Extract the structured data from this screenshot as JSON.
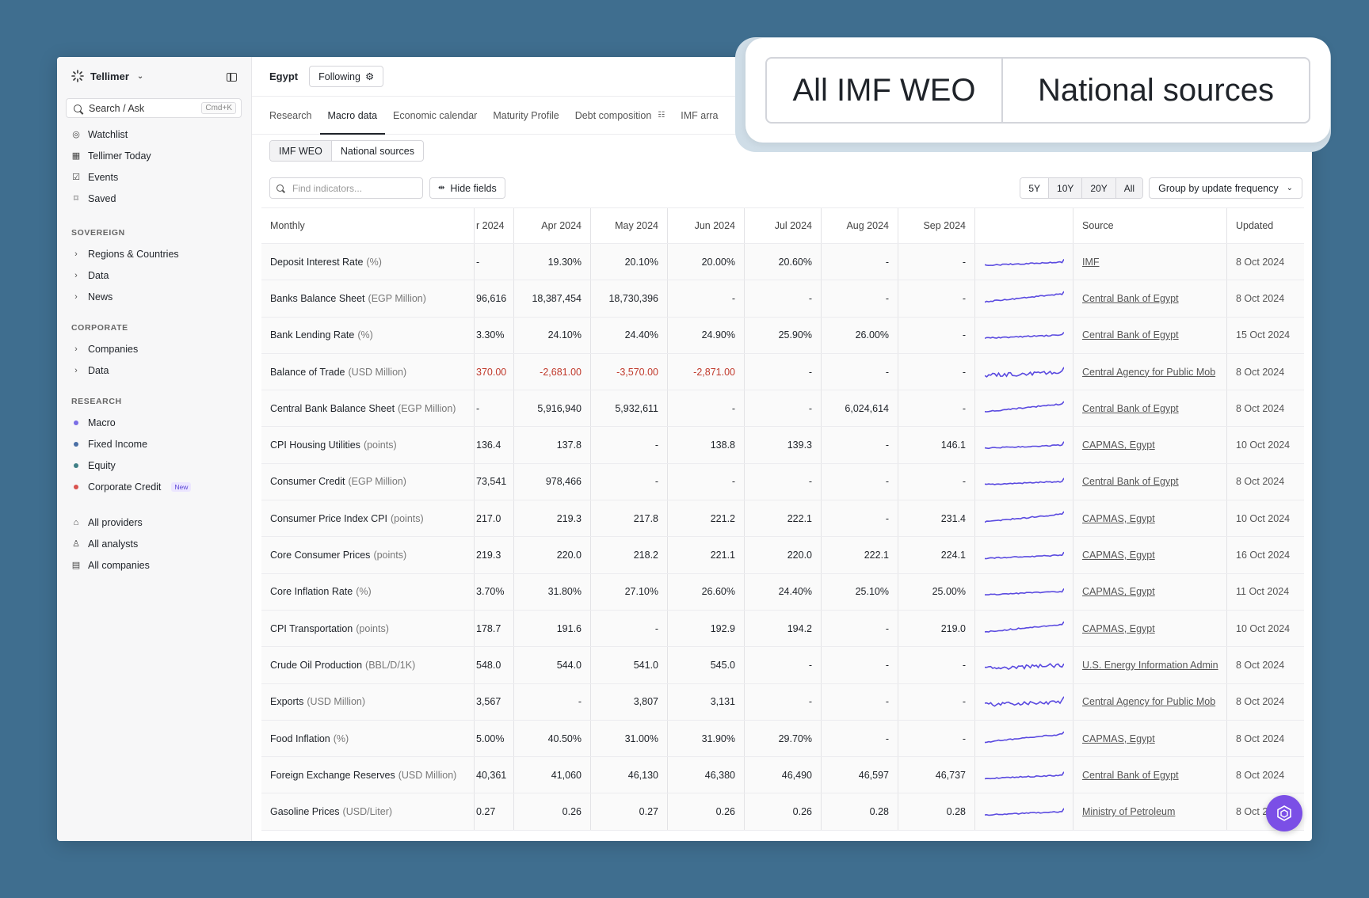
{
  "app": {
    "name": "Tellimer"
  },
  "sidebar": {
    "search_label": "Search / Ask",
    "search_shortcut": "Cmd+K",
    "top_items": [
      {
        "label": "Watchlist",
        "icon": "eye-icon"
      },
      {
        "label": "Tellimer Today",
        "icon": "calendar-icon"
      },
      {
        "label": "Events",
        "icon": "calendar-check-icon"
      },
      {
        "label": "Saved",
        "icon": "bookmark-icon"
      }
    ],
    "sovereign_title": "SOVEREIGN",
    "sovereign_items": [
      "Regions & Countries",
      "Data",
      "News"
    ],
    "corporate_title": "CORPORATE",
    "corporate_items": [
      "Companies",
      "Data"
    ],
    "research_title": "RESEARCH",
    "research_items": [
      {
        "label": "Macro",
        "color": "#7b6ee6"
      },
      {
        "label": "Fixed Income",
        "color": "#4a6fa5"
      },
      {
        "label": "Equity",
        "color": "#3f7f86"
      },
      {
        "label": "Corporate Credit",
        "color": "#d9534f",
        "badge": "New"
      }
    ],
    "bottom_items": [
      {
        "label": "All providers",
        "icon": "building-icon"
      },
      {
        "label": "All analysts",
        "icon": "user-icon"
      },
      {
        "label": "All companies",
        "icon": "document-icon"
      }
    ]
  },
  "header": {
    "country": "Egypt",
    "follow_label": "Following"
  },
  "tabs": [
    "Research",
    "Macro data",
    "Economic calendar",
    "Maturity Profile",
    "Debt composition",
    "IMF arra"
  ],
  "source_toggle": [
    "IMF WEO",
    "National sources"
  ],
  "controls": {
    "find_placeholder": "Find indicators...",
    "hide_fields": "Hide fields",
    "ranges": [
      "5Y",
      "10Y",
      "20Y",
      "All"
    ],
    "group_by": "Group by update frequency"
  },
  "table": {
    "group_label": "Monthly",
    "columns": [
      "r 2024",
      "Apr 2024",
      "May 2024",
      "Jun 2024",
      "Jul 2024",
      "Aug 2024",
      "Sep 2024"
    ],
    "source_header": "Source",
    "updated_header": "Updated",
    "rows": [
      {
        "name": "Deposit Interest Rate",
        "unit": "(%)",
        "values": [
          "-",
          "19.30%",
          "20.10%",
          "20.00%",
          "20.60%",
          "-",
          "-"
        ],
        "source": "IMF",
        "updated": "8 Oct 2024"
      },
      {
        "name": "Banks Balance Sheet",
        "unit": "(EGP Million)",
        "values": [
          "96,616",
          "18,387,454",
          "18,730,396",
          "-",
          "-",
          "-",
          "-"
        ],
        "source": "Central Bank of Egypt",
        "updated": "8 Oct 2024"
      },
      {
        "name": "Bank Lending Rate",
        "unit": "(%)",
        "values": [
          "3.30%",
          "24.10%",
          "24.40%",
          "24.90%",
          "25.90%",
          "26.00%",
          "-"
        ],
        "source": "Central Bank of Egypt",
        "updated": "15 Oct 2024"
      },
      {
        "name": "Balance of Trade",
        "unit": "(USD Million)",
        "values": [
          "370.00",
          "-2,681.00",
          "-3,570.00",
          "-2,871.00",
          "-",
          "-",
          "-"
        ],
        "source": "Central Agency for Public Mob",
        "updated": "8 Oct 2024"
      },
      {
        "name": "Central Bank Balance Sheet",
        "unit": "(EGP Million)",
        "values": [
          "-",
          "5,916,940",
          "5,932,611",
          "-",
          "-",
          "6,024,614",
          "-"
        ],
        "source": "Central Bank of Egypt",
        "updated": "8 Oct 2024"
      },
      {
        "name": "CPI Housing Utilities",
        "unit": "(points)",
        "values": [
          "136.4",
          "137.8",
          "-",
          "138.8",
          "139.3",
          "-",
          "146.1"
        ],
        "source": "CAPMAS, Egypt",
        "updated": "10 Oct 2024"
      },
      {
        "name": "Consumer Credit",
        "unit": "(EGP Million)",
        "values": [
          "73,541",
          "978,466",
          "-",
          "-",
          "-",
          "-",
          "-"
        ],
        "source": "Central Bank of Egypt",
        "updated": "8 Oct 2024"
      },
      {
        "name": "Consumer Price Index CPI",
        "unit": "(points)",
        "values": [
          "217.0",
          "219.3",
          "217.8",
          "221.2",
          "222.1",
          "-",
          "231.4"
        ],
        "source": "CAPMAS, Egypt",
        "updated": "10 Oct 2024"
      },
      {
        "name": "Core Consumer Prices",
        "unit": "(points)",
        "values": [
          "219.3",
          "220.0",
          "218.2",
          "221.1",
          "220.0",
          "222.1",
          "224.1"
        ],
        "source": "CAPMAS, Egypt",
        "updated": "16 Oct 2024"
      },
      {
        "name": "Core Inflation Rate",
        "unit": "(%)",
        "values": [
          "3.70%",
          "31.80%",
          "27.10%",
          "26.60%",
          "24.40%",
          "25.10%",
          "25.00%"
        ],
        "source": "CAPMAS, Egypt",
        "updated": "11 Oct 2024"
      },
      {
        "name": "CPI Transportation",
        "unit": "(points)",
        "values": [
          "178.7",
          "191.6",
          "-",
          "192.9",
          "194.2",
          "-",
          "219.0"
        ],
        "source": "CAPMAS, Egypt",
        "updated": "10 Oct 2024"
      },
      {
        "name": "Crude Oil Production",
        "unit": "(BBL/D/1K)",
        "values": [
          "548.0",
          "544.0",
          "541.0",
          "545.0",
          "-",
          "-",
          "-"
        ],
        "source": "U.S. Energy Information Admin",
        "updated": "8 Oct 2024"
      },
      {
        "name": "Exports",
        "unit": "(USD Million)",
        "values": [
          "3,567",
          "-",
          "3,807",
          "3,131",
          "-",
          "-",
          "-"
        ],
        "source": "Central Agency for Public Mob",
        "updated": "8 Oct 2024"
      },
      {
        "name": "Food Inflation",
        "unit": "(%)",
        "values": [
          "5.00%",
          "40.50%",
          "31.00%",
          "31.90%",
          "29.70%",
          "-",
          "-"
        ],
        "source": "CAPMAS, Egypt",
        "updated": "8 Oct 2024"
      },
      {
        "name": "Foreign Exchange Reserves",
        "unit": "(USD Million)",
        "values": [
          "40,361",
          "41,060",
          "46,130",
          "46,380",
          "46,490",
          "46,597",
          "46,737"
        ],
        "source": "Central Bank of Egypt",
        "updated": "8 Oct 2024"
      },
      {
        "name": "Gasoline Prices",
        "unit": "(USD/Liter)",
        "values": [
          "0.27",
          "0.26",
          "0.27",
          "0.26",
          "0.26",
          "0.28",
          "0.28"
        ],
        "source": "Ministry of Petroleum",
        "updated": "8 Oct 2"
      }
    ]
  },
  "overlay": {
    "left_label": "All IMF WEO",
    "right_label": "National sources"
  },
  "colors": {
    "accent": "#5a4ae0",
    "negative": "#c0392b",
    "background": "#3f6e8f",
    "fab": "#7b4fe6"
  }
}
